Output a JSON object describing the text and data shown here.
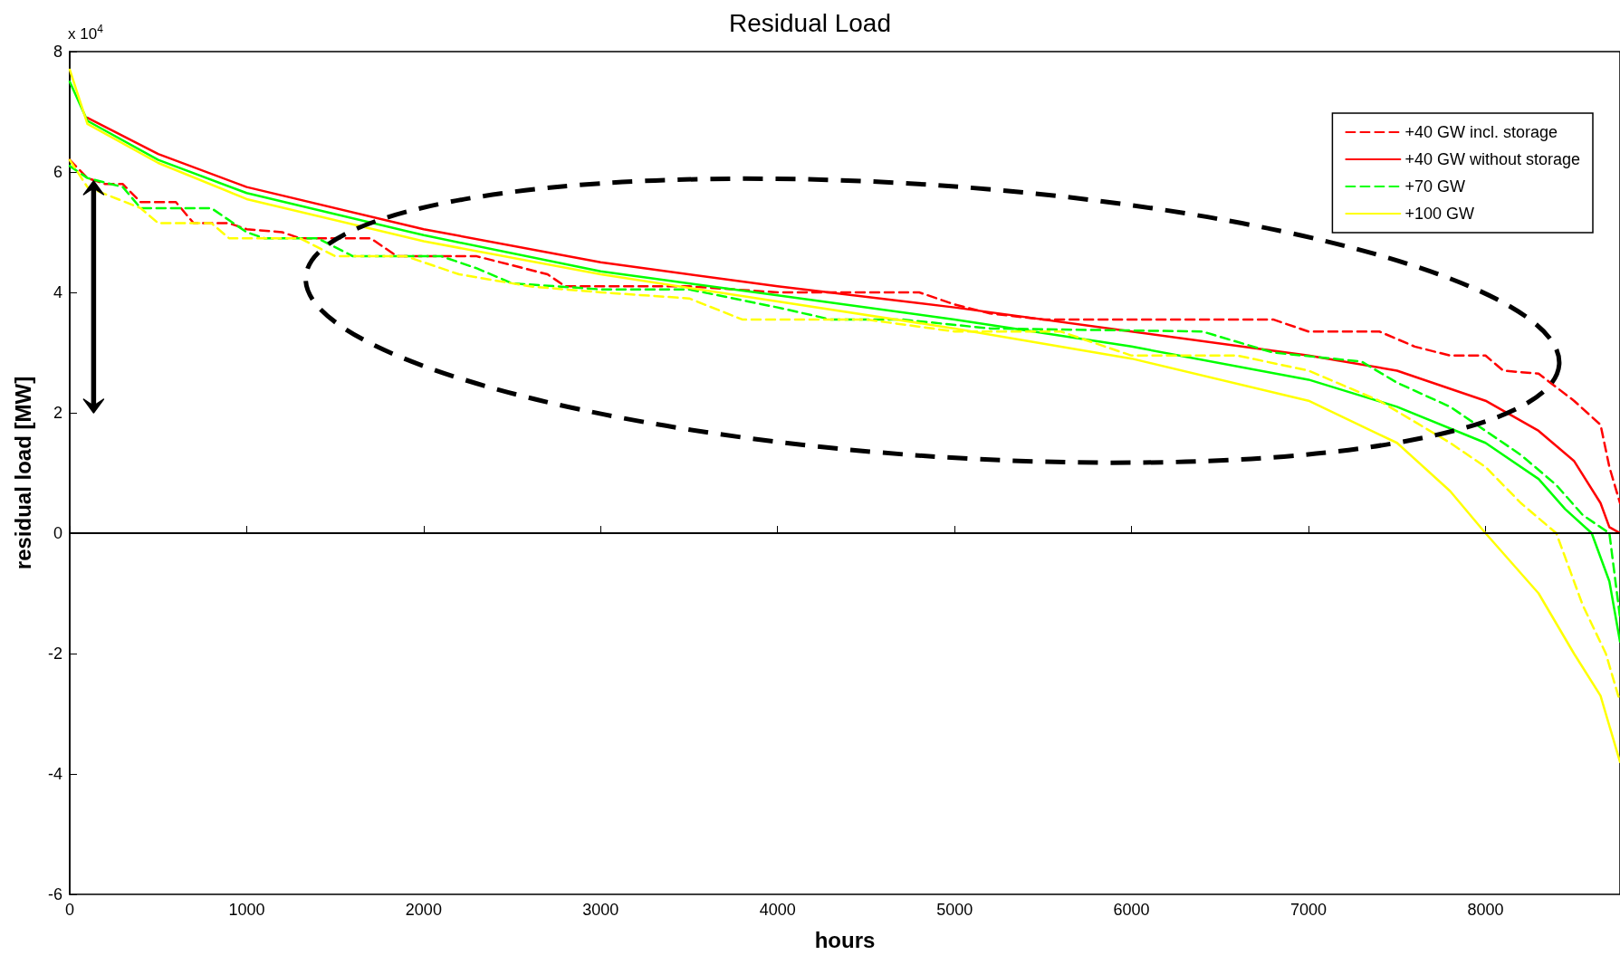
{
  "chart_data": {
    "type": "line",
    "title": "Residual Load",
    "xlabel": "hours",
    "ylabel": "residual load [MW]",
    "annotations": [
      "x 10$^{4}$"
    ],
    "xlim": [
      0,
      8760
    ],
    "xticks": [
      0,
      1000,
      2000,
      3000,
      4000,
      5000,
      6000,
      7000,
      8000
    ],
    "ylim": [
      -6,
      8
    ],
    "yticks": [
      -6,
      -4,
      -2,
      0,
      2,
      4,
      6,
      8
    ],
    "ref_lines": [
      {
        "axis": "y",
        "value": 0,
        "color": "#000000",
        "line_style": "solid"
      }
    ],
    "grid": false,
    "legend": "top right",
    "marker": "none",
    "series": [
      {
        "name": "+40 GW incl. storage",
        "color": "#ff0000",
        "line_style": "dashed",
        "x": [
          0,
          100,
          200,
          300,
          400,
          600,
          700,
          900,
          1000,
          1200,
          1300,
          1700,
          1850,
          2300,
          2700,
          2800,
          3500,
          4000,
          4800,
          5000,
          5200,
          5500,
          6800,
          7000,
          7400,
          7600,
          7800,
          8000,
          8100,
          8300,
          8500,
          8650,
          8700,
          8760
        ],
        "values": [
          6.2,
          5.9,
          5.8,
          5.8,
          5.5,
          5.5,
          5.15,
          5.15,
          5.05,
          5.0,
          4.9,
          4.9,
          4.6,
          4.6,
          4.3,
          4.1,
          4.1,
          4.0,
          4.0,
          3.8,
          3.65,
          3.55,
          3.55,
          3.35,
          3.35,
          3.1,
          2.95,
          2.95,
          2.7,
          2.65,
          2.2,
          1.8,
          1.1,
          0.5
        ]
      },
      {
        "name": "+40 GW without storage",
        "color": "#ff0000",
        "line_style": "solid",
        "x": [
          100,
          500,
          1000,
          2000,
          3000,
          4000,
          5000,
          6000,
          7000,
          7500,
          8000,
          8300,
          8500,
          8650,
          8700,
          8760
        ],
        "values": [
          6.9,
          6.3,
          5.75,
          5.05,
          4.5,
          4.1,
          3.75,
          3.35,
          2.95,
          2.7,
          2.2,
          1.7,
          1.2,
          0.5,
          0.1,
          0
        ]
      },
      {
        "name": "+70 GW",
        "color": "#00ff00",
        "line_style": "dashed",
        "x": [
          0,
          100,
          300,
          400,
          800,
          1000,
          1100,
          1400,
          1600,
          2100,
          2300,
          2500,
          3000,
          3500,
          4000,
          4300,
          4700,
          5200,
          6400,
          6800,
          7300,
          7500,
          7800,
          8000,
          8200,
          8400,
          8550,
          8700,
          8760
        ],
        "values": [
          6.1,
          5.9,
          5.75,
          5.4,
          5.4,
          5.0,
          4.9,
          4.9,
          4.6,
          4.6,
          4.4,
          4.15,
          4.05,
          4.05,
          3.75,
          3.55,
          3.55,
          3.4,
          3.35,
          3.0,
          2.85,
          2.5,
          2.1,
          1.7,
          1.3,
          0.8,
          0.3,
          0,
          -1.4
        ]
      },
      {
        "color": "#00ff00",
        "line_style": "solid",
        "x": [
          0,
          100,
          500,
          1000,
          2000,
          3000,
          4000,
          5000,
          6000,
          7000,
          7500,
          8000,
          8300,
          8450,
          8600,
          8700,
          8760
        ],
        "values": [
          7.5,
          6.85,
          6.2,
          5.65,
          4.95,
          4.35,
          3.95,
          3.55,
          3.1,
          2.55,
          2.1,
          1.5,
          0.9,
          0.4,
          0,
          -0.8,
          -1.8
        ]
      },
      {
        "name": "+100 GW",
        "color": "#ffff00",
        "line_style": "solid",
        "x": [
          0,
          100,
          500,
          1000,
          2000,
          3000,
          4000,
          5000,
          6000,
          7000,
          7500,
          7800,
          8000,
          8300,
          8500,
          8650,
          8760
        ],
        "values": [
          7.7,
          6.8,
          6.15,
          5.55,
          4.85,
          4.3,
          3.85,
          3.4,
          2.9,
          2.2,
          1.5,
          0.7,
          0,
          -1.0,
          -2.0,
          -2.7,
          -3.8
        ]
      },
      {
        "color": "#ffff00",
        "line_style": "dashed",
        "x": [
          0,
          100,
          400,
          500,
          800,
          900,
          1300,
          1500,
          1900,
          2200,
          2600,
          3000,
          3500,
          3800,
          4500,
          5000,
          5600,
          6000,
          6600,
          7000,
          7400,
          7800,
          8000,
          8200,
          8400,
          8550,
          8680,
          8760
        ],
        "values": [
          6.2,
          5.75,
          5.4,
          5.15,
          5.15,
          4.9,
          4.9,
          4.6,
          4.6,
          4.3,
          4.1,
          4.0,
          3.9,
          3.55,
          3.55,
          3.35,
          3.35,
          2.95,
          2.95,
          2.7,
          2.2,
          1.5,
          1.1,
          0.5,
          0,
          -1.2,
          -2.0,
          -2.8
        ]
      }
    ]
  }
}
